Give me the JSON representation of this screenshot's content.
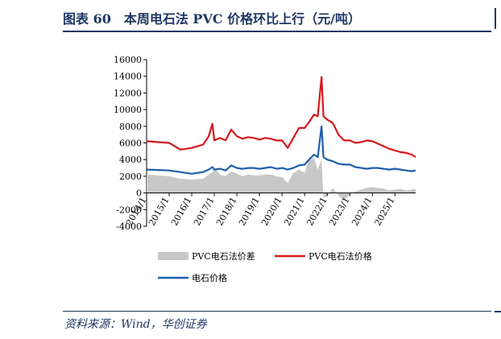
{
  "header": {
    "title": "图表 60　本周电石法 PVC 价格环比上行（元/吨）"
  },
  "footer": {
    "source": "资料来源：Wind，华创证券"
  },
  "colors": {
    "title": "#1f3864",
    "spread": "#c8c8c8",
    "pvc": "#d7191c",
    "carbide": "#1f5fad"
  },
  "chart_data": {
    "type": "line",
    "ylim": [
      -4000,
      16000
    ],
    "yticks": [
      "16000",
      "14000",
      "12000",
      "10000",
      "8000",
      "6000",
      "4000",
      "2000",
      "0",
      "-2000",
      "-4000"
    ],
    "xticks": [
      "2014/1",
      "2015/1",
      "2016/1",
      "2017/1",
      "2018/1",
      "2019/1",
      "2020/1",
      "2021/1",
      "2022/1",
      "2023/1",
      "2024/1",
      "2025/1"
    ],
    "xlim": [
      "2014/1",
      "2025/12"
    ],
    "x": [
      "2014/1",
      "2014/7",
      "2015/1",
      "2015/7",
      "2016/1",
      "2016/7",
      "2016/10",
      "2016/12",
      "2017/1",
      "2017/4",
      "2017/7",
      "2017/10",
      "2018/1",
      "2018/4",
      "2018/7",
      "2018/10",
      "2019/1",
      "2019/4",
      "2019/7",
      "2019/10",
      "2020/1",
      "2020/4",
      "2020/7",
      "2020/10",
      "2021/1",
      "2021/3",
      "2021/6",
      "2021/8",
      "2021/10",
      "2021/11",
      "2022/1",
      "2022/4",
      "2022/7",
      "2022/10",
      "2023/1",
      "2023/4",
      "2023/7",
      "2023/10",
      "2024/1",
      "2024/4",
      "2024/7",
      "2024/10",
      "2025/1",
      "2025/4",
      "2025/7",
      "2025/10",
      "2025/12"
    ],
    "series": [
      {
        "name": "PVC电石法价差",
        "style": "area",
        "values": [
          2200,
          2100,
          2000,
          1700,
          1600,
          1700,
          2200,
          2500,
          3000,
          2200,
          2000,
          2600,
          2300,
          2000,
          2200,
          2100,
          2100,
          2200,
          2200,
          2000,
          1900,
          1200,
          2400,
          2800,
          2400,
          3800,
          4200,
          2800,
          4000,
          -600,
          -400,
          600,
          -300,
          -900,
          -200,
          200,
          400,
          600,
          700,
          600,
          500,
          300,
          400,
          500,
          300,
          400,
          500
        ]
      },
      {
        "name": "PVC电石法价格",
        "style": "line",
        "values": [
          6200,
          6100,
          6000,
          5200,
          5400,
          5800,
          6800,
          8300,
          6300,
          6600,
          6300,
          7600,
          6800,
          6500,
          6700,
          6600,
          6400,
          6600,
          6500,
          6300,
          6300,
          5400,
          6600,
          7800,
          7800,
          8400,
          9400,
          9200,
          13900,
          9200,
          8800,
          8400,
          7000,
          6300,
          6300,
          6000,
          6100,
          6300,
          6200,
          5900,
          5600,
          5300,
          5100,
          4900,
          4800,
          4600,
          4300
        ]
      },
      {
        "name": "电石价格",
        "style": "line",
        "values": [
          2800,
          2750,
          2700,
          2500,
          2300,
          2500,
          2800,
          3100,
          2800,
          2900,
          2700,
          3300,
          3000,
          2900,
          3000,
          3000,
          2900,
          3000,
          3100,
          2900,
          3000,
          2800,
          3000,
          3300,
          3400,
          3900,
          4600,
          4300,
          8000,
          4300,
          4000,
          3800,
          3500,
          3400,
          3400,
          3100,
          3000,
          2900,
          3000,
          3000,
          2900,
          2800,
          2900,
          2800,
          2700,
          2600,
          2700
        ]
      }
    ]
  }
}
